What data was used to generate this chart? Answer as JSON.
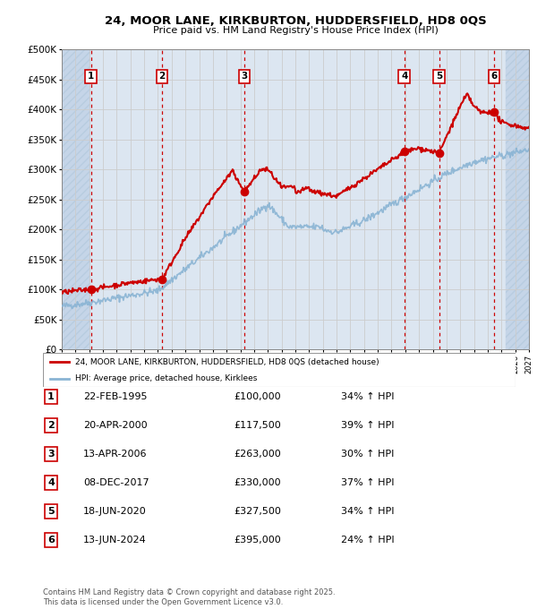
{
  "title_line1": "24, MOOR LANE, KIRKBURTON, HUDDERSFIELD, HD8 0QS",
  "title_line2": "Price paid vs. HM Land Registry's House Price Index (HPI)",
  "ylabel_ticks": [
    "£0",
    "£50K",
    "£100K",
    "£150K",
    "£200K",
    "£250K",
    "£300K",
    "£350K",
    "£400K",
    "£450K",
    "£500K"
  ],
  "ytick_values": [
    0,
    50000,
    100000,
    150000,
    200000,
    250000,
    300000,
    350000,
    400000,
    450000,
    500000
  ],
  "xmin": 1993,
  "xmax": 2027,
  "ymin": 0,
  "ymax": 500000,
  "sales": [
    {
      "num": 1,
      "year": 1995.13,
      "price": 100000,
      "date": "22-FEB-1995",
      "pct": "34%",
      "dir": "↑"
    },
    {
      "num": 2,
      "year": 2000.3,
      "price": 117500,
      "date": "20-APR-2000",
      "pct": "39%",
      "dir": "↑"
    },
    {
      "num": 3,
      "year": 2006.28,
      "price": 263000,
      "date": "13-APR-2006",
      "pct": "30%",
      "dir": "↑"
    },
    {
      "num": 4,
      "year": 2017.93,
      "price": 330000,
      "date": "08-DEC-2017",
      "pct": "37%",
      "dir": "↑"
    },
    {
      "num": 5,
      "year": 2020.46,
      "price": 327500,
      "date": "18-JUN-2020",
      "pct": "34%",
      "dir": "↑"
    },
    {
      "num": 6,
      "year": 2024.45,
      "price": 395000,
      "date": "13-JUN-2024",
      "pct": "24%",
      "dir": "↑"
    }
  ],
  "legend_label_red": "24, MOOR LANE, KIRKBURTON, HUDDERSFIELD, HD8 0QS (detached house)",
  "legend_label_blue": "HPI: Average price, detached house, Kirklees",
  "footer": "Contains HM Land Registry data © Crown copyright and database right 2025.\nThis data is licensed under the Open Government Licence v3.0.",
  "bg_color": "#dce6f1",
  "hatched_bg": "#c5d5e8",
  "red_line_color": "#cc0000",
  "blue_line_color": "#8ab4d4",
  "box_color": "#cc0000",
  "grid_color": "#cccccc",
  "hatch_color": "#b8cce0"
}
